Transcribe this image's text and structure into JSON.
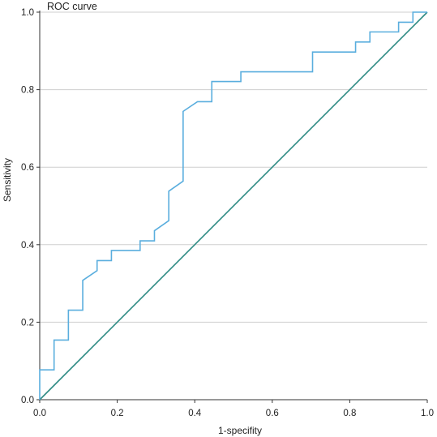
{
  "chart_data": {
    "type": "line",
    "title": "ROC curve",
    "xlabel": "1-specifity",
    "ylabel": "Sensitivity",
    "xlim": [
      0,
      1
    ],
    "ylim": [
      0,
      1
    ],
    "xticks": [
      "0.0",
      "0.2",
      "0.4",
      "0.6",
      "0.8",
      "1.0"
    ],
    "yticks": [
      "0.0",
      "0.2",
      "0.4",
      "0.6",
      "0.8",
      "1.0"
    ],
    "grid": "horizontal",
    "legend": "none",
    "colors": {
      "roc": "#5aaede",
      "reference": "#2e8b84",
      "grid": "#cfcfcf",
      "axis": "#333333"
    },
    "series": [
      {
        "x": [
          0.0,
          0.0,
          0.037,
          0.037,
          0.074,
          0.074,
          0.111,
          0.111,
          0.148,
          0.148,
          0.185,
          0.185,
          0.259,
          0.259,
          0.296,
          0.296,
          0.333,
          0.333,
          0.37,
          0.37,
          0.407,
          0.444,
          0.444,
          0.519,
          0.519,
          0.704,
          0.704,
          0.815,
          0.815,
          0.852,
          0.852,
          0.926,
          0.926,
          0.963,
          0.963,
          1.0
        ],
        "y": [
          0.0,
          0.077,
          0.077,
          0.154,
          0.154,
          0.231,
          0.231,
          0.308,
          0.333,
          0.359,
          0.359,
          0.385,
          0.385,
          0.41,
          0.41,
          0.436,
          0.462,
          0.538,
          0.564,
          0.744,
          0.769,
          0.769,
          0.821,
          0.821,
          0.846,
          0.846,
          0.897,
          0.897,
          0.923,
          0.923,
          0.949,
          0.949,
          0.974,
          0.974,
          1.0,
          1.0
        ]
      },
      {
        "x": [
          0.0,
          1.0
        ],
        "y": [
          0.0,
          1.0
        ]
      }
    ]
  }
}
